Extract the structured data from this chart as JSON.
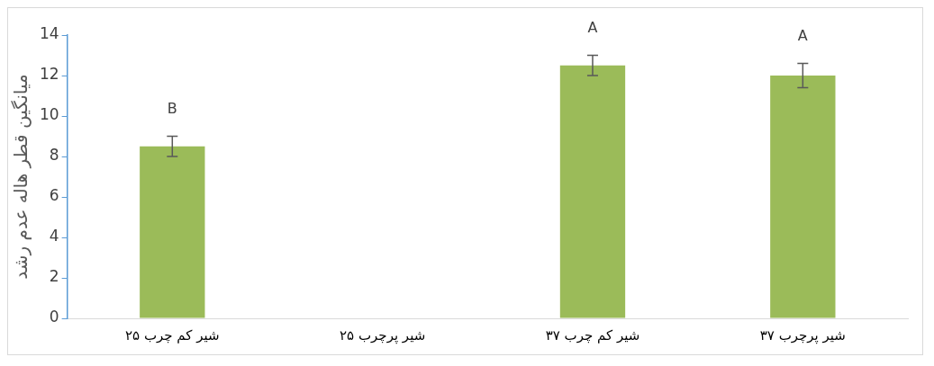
{
  "chart_data": {
    "type": "bar",
    "ylabel": "میانگین قطر هاله عدم رشد",
    "categories": [
      "شیر کم چرب ۲۵",
      "شیر پرچرب ۲۵",
      "شیر کم چرب ۳۷",
      "شیر پرچرب ۳۷"
    ],
    "values": [
      8.5,
      null,
      12.5,
      12
    ],
    "errors": [
      0.5,
      null,
      0.5,
      0.6
    ],
    "color": "#9bbb59",
    "ylim": [
      0,
      14
    ],
    "yticks": [
      0,
      2,
      4,
      6,
      8,
      10,
      12,
      14
    ],
    "grid": false,
    "legend": false,
    "annotations": [
      {
        "text": "B",
        "x": "شیر کم چرب ۲۵",
        "y": 9
      },
      {
        "text": "A",
        "x": "شیر کم چرب ۳۷",
        "y": 13
      },
      {
        "text": "A",
        "x": "شیر پرچرب ۳۷",
        "y": 12.6
      }
    ]
  }
}
